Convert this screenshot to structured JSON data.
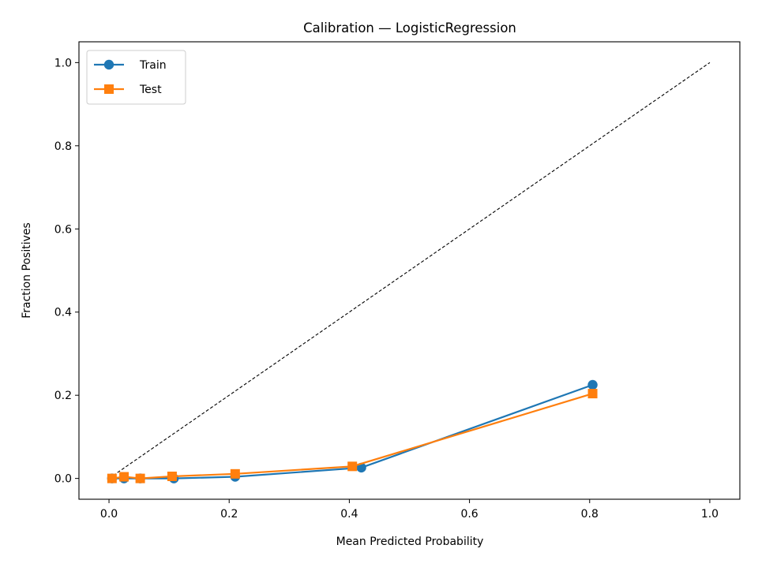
{
  "chart_data": {
    "type": "line",
    "title": "Calibration — LogisticRegression",
    "xlabel": "Mean Predicted Probability",
    "ylabel": "Fraction Positives",
    "xlim": [
      -0.05,
      1.05
    ],
    "ylim": [
      -0.05,
      1.05
    ],
    "xticks": [
      0.0,
      0.2,
      0.4,
      0.6,
      0.8,
      1.0
    ],
    "yticks": [
      0.0,
      0.2,
      0.4,
      0.6,
      0.8,
      1.0
    ],
    "xtick_labels": [
      "0.0",
      "0.2",
      "0.4",
      "0.6",
      "0.8",
      "1.0"
    ],
    "ytick_labels": [
      "0.0",
      "0.2",
      "0.4",
      "0.6",
      "0.8",
      "1.0"
    ],
    "grid": false,
    "legend_position": "top-left",
    "reference_line": {
      "style": "dashed",
      "color": "#000000",
      "x": [
        0.0,
        1.0
      ],
      "y": [
        0.0,
        1.0
      ]
    },
    "series": [
      {
        "name": "Train",
        "color": "#1f77b4",
        "marker": "circle",
        "x": [
          0.005,
          0.025,
          0.052,
          0.108,
          0.21,
          0.42,
          0.805
        ],
        "y": [
          0.0,
          0.0,
          0.0,
          0.0,
          0.004,
          0.026,
          0.225
        ]
      },
      {
        "name": "Test",
        "color": "#ff7f0e",
        "marker": "square",
        "x": [
          0.005,
          0.025,
          0.052,
          0.105,
          0.21,
          0.405,
          0.805
        ],
        "y": [
          0.0,
          0.004,
          0.0,
          0.005,
          0.011,
          0.029,
          0.204
        ]
      }
    ]
  }
}
